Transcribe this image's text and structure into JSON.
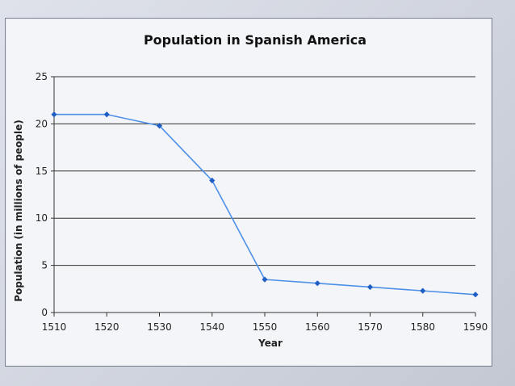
{
  "chart_data": {
    "type": "line",
    "title": "Population in Spanish America",
    "xlabel": "Year",
    "ylabel": "Population (in millions of people)",
    "x": [
      1510,
      1520,
      1530,
      1540,
      1550,
      1560,
      1570,
      1580,
      1590
    ],
    "series": [
      {
        "values": [
          21,
          21,
          19.8,
          14,
          3.5,
          3.1,
          2.7,
          2.3,
          1.9
        ]
      }
    ],
    "ylim": [
      0,
      25
    ],
    "yticks": [
      0,
      5,
      10,
      15,
      20,
      25
    ],
    "grid": true,
    "legend": "none",
    "line_color": "#4d90e8",
    "marker_color": "#1f5fc4",
    "grid_color": "#333333"
  }
}
